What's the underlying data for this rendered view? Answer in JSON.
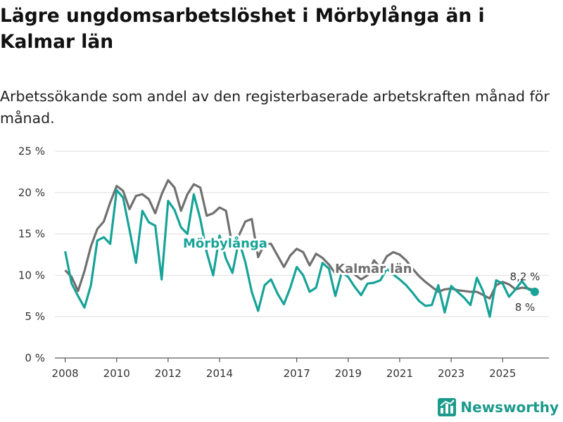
{
  "title": "Lägre ungdomsarbetslöshet i Mörbylånga än i Kalmar län",
  "subtitle": "Arbetssökande som andel av den registerbaserade arbetskraften månad för månad.",
  "brand": "Newsworthy",
  "colors": {
    "local": "#17a398",
    "region": "#707070",
    "grid": "#dddddd"
  },
  "chart_data": {
    "type": "line",
    "ylim": [
      0,
      25
    ],
    "yticks": [
      0,
      5,
      10,
      15,
      20,
      25
    ],
    "ytick_labels": [
      "0 %",
      "5 %",
      "10 %",
      "15 %",
      "20 %",
      "25 %"
    ],
    "xlim": [
      2007.6,
      2026.8
    ],
    "xticks": [
      2008,
      2010,
      2012,
      2014,
      2017,
      2019,
      2021,
      2023,
      2025
    ],
    "xtick_labels": [
      "2008",
      "2010",
      "2012",
      "2014",
      "2017",
      "2019",
      "2021",
      "2023",
      "2025"
    ],
    "series": [
      {
        "name": "Kalmar län",
        "label": "Kalmar län",
        "end_label": "8,2 %",
        "x": [
          2008.0,
          2008.25,
          2008.5,
          2008.75,
          2009.0,
          2009.25,
          2009.5,
          2009.75,
          2010.0,
          2010.25,
          2010.5,
          2010.75,
          2011.0,
          2011.25,
          2011.5,
          2011.75,
          2012.0,
          2012.25,
          2012.5,
          2012.75,
          2013.0,
          2013.25,
          2013.5,
          2013.75,
          2014.0,
          2014.25,
          2014.5,
          2014.75,
          2015.0,
          2015.25,
          2015.5,
          2015.75,
          2016.0,
          2016.25,
          2016.5,
          2016.75,
          2017.0,
          2017.25,
          2017.5,
          2017.75,
          2018.0,
          2018.25,
          2018.5,
          2018.75,
          2019.0,
          2019.25,
          2019.5,
          2019.75,
          2020.0,
          2020.25,
          2020.5,
          2020.75,
          2021.0,
          2021.25,
          2021.5,
          2021.75,
          2022.0,
          2022.25,
          2022.5,
          2022.75,
          2023.0,
          2023.25,
          2023.5,
          2023.75,
          2024.0,
          2024.25,
          2024.5,
          2024.75,
          2025.0,
          2025.25,
          2025.5,
          2025.75,
          2026.0,
          2026.25
        ],
        "values": [
          10.6,
          9.8,
          8.1,
          10.5,
          13.5,
          15.6,
          16.5,
          18.8,
          20.8,
          20.2,
          18.0,
          19.6,
          19.8,
          19.2,
          17.5,
          19.8,
          21.5,
          20.6,
          17.8,
          19.8,
          21.0,
          20.6,
          17.2,
          17.5,
          18.2,
          17.8,
          13.5,
          14.8,
          16.5,
          16.8,
          12.2,
          13.8,
          13.8,
          12.4,
          11.0,
          12.4,
          13.2,
          12.8,
          11.2,
          12.6,
          12.1,
          11.3,
          10.2,
          10.4,
          10.8,
          10.1,
          9.5,
          10.0,
          11.8,
          10.9,
          12.3,
          12.8,
          12.5,
          11.8,
          10.8,
          9.9,
          9.2,
          8.6,
          8.0,
          8.3,
          8.4,
          8.2,
          8.1,
          8.0,
          8.0,
          7.6,
          7.2,
          8.8,
          9.2,
          8.9,
          8.3,
          8.5,
          8.4,
          8.2
        ]
      },
      {
        "name": "Mörbylånga",
        "label": "Mörbylånga",
        "end_label": "8 %",
        "x": [
          2008.0,
          2008.25,
          2008.5,
          2008.75,
          2009.0,
          2009.25,
          2009.5,
          2009.75,
          2010.0,
          2010.25,
          2010.5,
          2010.75,
          2011.0,
          2011.25,
          2011.5,
          2011.75,
          2012.0,
          2012.25,
          2012.5,
          2012.75,
          2013.0,
          2013.25,
          2013.5,
          2013.75,
          2014.0,
          2014.25,
          2014.5,
          2014.75,
          2015.0,
          2015.25,
          2015.5,
          2015.75,
          2016.0,
          2016.25,
          2016.5,
          2016.75,
          2017.0,
          2017.25,
          2017.5,
          2017.75,
          2018.0,
          2018.25,
          2018.5,
          2018.75,
          2019.0,
          2019.25,
          2019.5,
          2019.75,
          2020.0,
          2020.25,
          2020.5,
          2020.75,
          2021.0,
          2021.25,
          2021.5,
          2021.75,
          2022.0,
          2022.25,
          2022.5,
          2022.75,
          2023.0,
          2023.25,
          2023.5,
          2023.75,
          2024.0,
          2024.25,
          2024.5,
          2024.75,
          2025.0,
          2025.25,
          2025.5,
          2025.75,
          2026.0,
          2026.25
        ],
        "values": [
          12.9,
          9.0,
          7.5,
          6.1,
          8.8,
          14.2,
          14.6,
          13.8,
          20.3,
          19.4,
          15.5,
          11.5,
          17.8,
          16.4,
          16.0,
          9.5,
          19.0,
          17.9,
          15.8,
          15.0,
          19.8,
          16.8,
          12.8,
          10.0,
          14.8,
          12.0,
          10.3,
          14.2,
          11.6,
          8.0,
          5.7,
          8.8,
          9.5,
          7.8,
          6.5,
          8.5,
          11.0,
          10.0,
          8.0,
          8.5,
          11.5,
          10.8,
          7.5,
          10.4,
          9.8,
          8.6,
          7.6,
          9.0,
          9.1,
          9.4,
          10.8,
          10.1,
          9.5,
          8.8,
          7.9,
          6.9,
          6.3,
          6.4,
          8.8,
          5.5,
          8.7,
          8.0,
          7.3,
          6.4,
          9.7,
          8.0,
          5.0,
          9.4,
          9.0,
          7.4,
          8.3,
          9.3,
          8.3,
          8.0
        ]
      }
    ]
  }
}
